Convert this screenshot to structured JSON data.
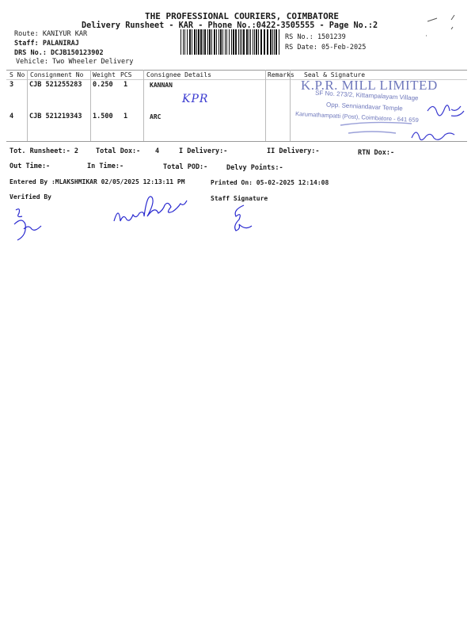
{
  "header": {
    "company": "THE PROFESSIONAL COURIERS, COIMBATORE",
    "subtitle": "Delivery Runsheet - KAR - Phone No.:0422-3505555 - Page No.:2",
    "route": "Route: KANIYUR KAR",
    "staff": "Staff: PALANIRAJ",
    "drs_no": "DRS No.: DCJB150123902",
    "vehicle": "Vehicle: Two Wheeler Delivery",
    "rs_no": "RS No.: 1501239",
    "rs_date": "RS Date: 05-Feb-2025"
  },
  "table": {
    "columns": [
      "S No",
      "Consignment No",
      "Weight",
      "PCS",
      "Consignee Details",
      "Remarks",
      "Seal & Signature"
    ],
    "rows": [
      {
        "sno": "3",
        "consignment": "CJB 521255283",
        "weight": "0.250",
        "pcs": "1",
        "consignee": "KANNAN",
        "remarks": ""
      },
      {
        "sno": "4",
        "consignment": "CJB 521219343",
        "weight": "1.500",
        "pcs": "1",
        "consignee": "ARC",
        "remarks": ""
      }
    ],
    "handwritten_note": "KPR"
  },
  "stamp": {
    "name": "K.P.R. MILL LIMITED",
    "line1": "SF No. 273/2, Kittampalayam Village",
    "line2": "Opp. Senniandavar Temple",
    "line3": "Karumathampatti (Post), Coimbatore - 641 659"
  },
  "totals": {
    "tot_runsheet": "Tot. Runsheet:- 2",
    "total_dox_label": "Total Dox:-",
    "total_dox_value": "4",
    "i_delivery": "I Delivery:-",
    "ii_delivery": "II Delivery:-",
    "rtn_dox": "RTN Dox:-",
    "out_time": "Out Time:-",
    "in_time": "In Time:-",
    "total_pod": "Total POD:-",
    "delvy_points": "Delvy Points:-"
  },
  "footer": {
    "entered_by": "Entered By :MLAKSHMIKAR 02/05/2025 12:13:11 PM",
    "printed_on": "Printed On: 05-02-2025 12:14:08",
    "verified_by": "Verified By",
    "staff_signature": "Staff Signature"
  },
  "colors": {
    "ink": "#1a1a1a",
    "stamp": "#5560b0",
    "pen": "#2a2ad0"
  }
}
